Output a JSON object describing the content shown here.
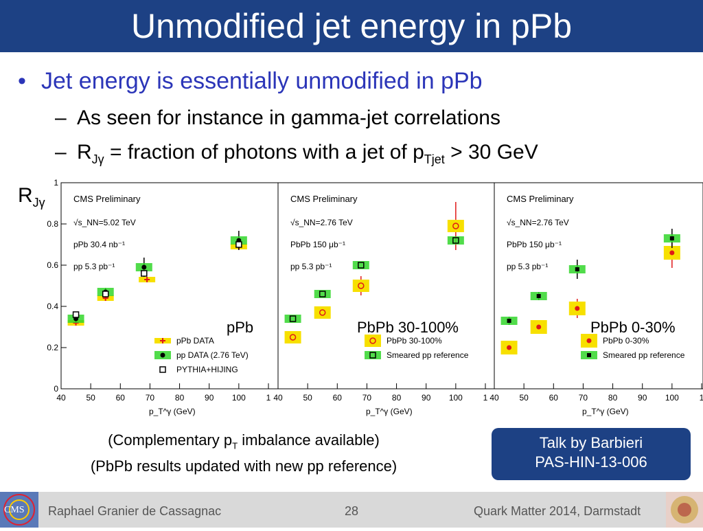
{
  "slide": {
    "title": "Unmodified jet energy in pPb",
    "bullet": "Jet energy is essentially unmodified in pPb",
    "sub1": "As seen for instance in gamma-jet correlations",
    "sub2": {
      "a": "R",
      "a_sub": "Jγ",
      "b": " = fraction of photons with a jet of p",
      "b_sub": "Tjet",
      "c": " > 30 GeV"
    },
    "y_label": {
      "main": "R",
      "sub": "Jγ"
    },
    "caption1": {
      "a": "(Complementary p",
      "sub": "T",
      "b": " imbalance available)"
    },
    "caption2": "(PbPb results updated with new pp reference)",
    "talk_line1": "Talk by Barbieri",
    "talk_line2": "PAS-HIN-13-006",
    "footer_author": "Raphael Granier de Cassagnac",
    "footer_page": "28",
    "footer_conf": "Quark Matter 2014, Darmstadt",
    "logo_left_text": "CMS"
  },
  "colors": {
    "title_bg": "#1d4184",
    "bullet": "#2b35b8",
    "red": "#e01818",
    "yellow": "#f7e000",
    "green": "#33d62c"
  },
  "chart_data": [
    {
      "type": "scatter",
      "panel_label": "pPb",
      "header": "CMS Preliminary",
      "info": [
        "√s_NN=5.02 TeV",
        "pPb 30.4 nb⁻¹",
        "pp 5.3 pb⁻¹"
      ],
      "xlabel": "p_T^γ (GeV)",
      "xlim": [
        40,
        110
      ],
      "ylim": [
        0,
        1
      ],
      "x_ticks": [
        "40",
        "50",
        "60",
        "70",
        "80",
        "90",
        "100",
        "1"
      ],
      "y_ticks": [
        "0",
        "0.2",
        "0.4",
        "0.6",
        "0.8",
        "1"
      ],
      "series": [
        {
          "name": "pPb DATA",
          "marker": "plus-red",
          "x": [
            45,
            55,
            69,
            100
          ],
          "y": [
            0.32,
            0.44,
            0.53,
            0.69
          ]
        },
        {
          "name": "pp DATA (2.76 TeV)",
          "marker": "dot-black",
          "x": [
            45,
            55,
            68,
            100
          ],
          "y": [
            0.34,
            0.47,
            0.59,
            0.72
          ]
        },
        {
          "name": "PYTHIA+HIJING",
          "marker": "open-square",
          "x": [
            45,
            55,
            68,
            100
          ],
          "y": [
            0.36,
            0.46,
            0.56,
            0.7
          ]
        }
      ]
    },
    {
      "type": "scatter",
      "panel_label": "PbPb 30-100%",
      "header": "CMS Preliminary",
      "info": [
        "√s_NN=2.76 TeV",
        "PbPb 150 μb⁻¹",
        "pp 5.3 pb⁻¹"
      ],
      "xlabel": "p_T^γ (GeV)",
      "xlim": [
        40,
        110
      ],
      "ylim": [
        0,
        1
      ],
      "x_ticks": [
        "40",
        "50",
        "60",
        "70",
        "80",
        "90",
        "100",
        "1"
      ],
      "series": [
        {
          "name": "PbPb 30-100%",
          "marker": "open-circle-red",
          "x": [
            45,
            55,
            68,
            100
          ],
          "y": [
            0.25,
            0.37,
            0.5,
            0.79
          ]
        },
        {
          "name": "Smeared pp reference",
          "marker": "open-square-green",
          "x": [
            45,
            55,
            68,
            100
          ],
          "y": [
            0.34,
            0.46,
            0.6,
            0.72
          ]
        }
      ]
    },
    {
      "type": "scatter",
      "panel_label": "PbPb 0-30%",
      "header": "CMS Preliminary",
      "info": [
        "√s_NN=2.76 TeV",
        "PbPb 150 μb⁻¹",
        "pp 5.3 pb⁻¹"
      ],
      "xlabel": "p_T^γ (GeV)",
      "xlim": [
        40,
        110
      ],
      "ylim": [
        0,
        1
      ],
      "x_ticks": [
        "40",
        "50",
        "60",
        "70",
        "80",
        "90",
        "100",
        "1"
      ],
      "series": [
        {
          "name": "PbPb 0-30%",
          "marker": "dot-red",
          "x": [
            45,
            55,
            68,
            100
          ],
          "y": [
            0.2,
            0.3,
            0.39,
            0.66
          ]
        },
        {
          "name": "Smeared pp reference",
          "marker": "dot-black-green",
          "x": [
            45,
            55,
            68,
            100
          ],
          "y": [
            0.33,
            0.45,
            0.58,
            0.73
          ]
        }
      ]
    }
  ]
}
